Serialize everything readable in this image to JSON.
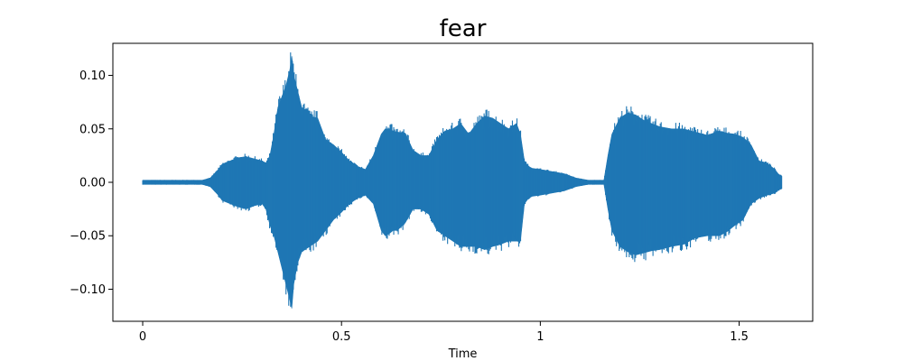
{
  "chart_data": {
    "type": "area",
    "title": "fear",
    "xlabel": "Time",
    "ylabel": "",
    "xlim": [
      -0.075,
      1.685
    ],
    "ylim": [
      -0.13,
      0.13
    ],
    "xticks": [
      0,
      0.5,
      1,
      1.5
    ],
    "xtick_labels": [
      "0",
      "0.5",
      "1",
      "1.5"
    ],
    "yticks": [
      -0.1,
      -0.05,
      0.0,
      0.05,
      0.1
    ],
    "ytick_labels": [
      "−0.10",
      "−0.05",
      "0.00",
      "0.05",
      "0.10"
    ],
    "grid": false,
    "legend": "none",
    "series": [
      {
        "color": "#1f77b4",
        "envelope": {
          "x": [
            0.0,
            0.04,
            0.08,
            0.12,
            0.15,
            0.17,
            0.19,
            0.2,
            0.22,
            0.24,
            0.26,
            0.28,
            0.3,
            0.31,
            0.32,
            0.33,
            0.34,
            0.35,
            0.36,
            0.37,
            0.375,
            0.38,
            0.39,
            0.4,
            0.42,
            0.44,
            0.46,
            0.48,
            0.5,
            0.52,
            0.54,
            0.56,
            0.58,
            0.6,
            0.61,
            0.62,
            0.63,
            0.64,
            0.66,
            0.68,
            0.7,
            0.72,
            0.74,
            0.76,
            0.78,
            0.8,
            0.82,
            0.84,
            0.86,
            0.88,
            0.9,
            0.92,
            0.94,
            0.95,
            0.96,
            0.97,
            0.98,
            1.0,
            1.03,
            1.06,
            1.09,
            1.12,
            1.14,
            1.16,
            1.17,
            1.18,
            1.2,
            1.22,
            1.24,
            1.26,
            1.28,
            1.3,
            1.33,
            1.36,
            1.39,
            1.42,
            1.45,
            1.47,
            1.49,
            1.51,
            1.53,
            1.55,
            1.57,
            1.59,
            1.6,
            1.607
          ],
          "upper": [
            0.002,
            0.002,
            0.002,
            0.002,
            0.002,
            0.004,
            0.012,
            0.017,
            0.02,
            0.023,
            0.024,
            0.022,
            0.02,
            0.018,
            0.025,
            0.045,
            0.07,
            0.08,
            0.09,
            0.105,
            0.118,
            0.1,
            0.085,
            0.07,
            0.062,
            0.06,
            0.04,
            0.035,
            0.028,
            0.02,
            0.015,
            0.012,
            0.025,
            0.045,
            0.05,
            0.05,
            0.048,
            0.047,
            0.046,
            0.03,
            0.025,
            0.025,
            0.04,
            0.048,
            0.05,
            0.055,
            0.045,
            0.055,
            0.062,
            0.06,
            0.055,
            0.05,
            0.055,
            0.045,
            0.02,
            0.015,
            0.013,
            0.012,
            0.01,
            0.008,
            0.004,
            0.002,
            0.002,
            0.002,
            0.025,
            0.045,
            0.06,
            0.065,
            0.063,
            0.058,
            0.055,
            0.052,
            0.05,
            0.05,
            0.047,
            0.044,
            0.048,
            0.046,
            0.045,
            0.042,
            0.035,
            0.02,
            0.018,
            0.012,
            0.007,
            0.006
          ],
          "lower": [
            -0.002,
            -0.002,
            -0.002,
            -0.002,
            -0.002,
            -0.004,
            -0.012,
            -0.017,
            -0.02,
            -0.023,
            -0.025,
            -0.022,
            -0.02,
            -0.025,
            -0.04,
            -0.05,
            -0.065,
            -0.08,
            -0.095,
            -0.11,
            -0.118,
            -0.095,
            -0.075,
            -0.065,
            -0.06,
            -0.055,
            -0.045,
            -0.035,
            -0.028,
            -0.02,
            -0.015,
            -0.012,
            -0.02,
            -0.045,
            -0.05,
            -0.048,
            -0.045,
            -0.045,
            -0.038,
            -0.025,
            -0.025,
            -0.03,
            -0.045,
            -0.05,
            -0.055,
            -0.06,
            -0.06,
            -0.06,
            -0.063,
            -0.06,
            -0.058,
            -0.055,
            -0.055,
            -0.055,
            -0.02,
            -0.015,
            -0.013,
            -0.012,
            -0.01,
            -0.008,
            -0.004,
            -0.002,
            -0.002,
            -0.002,
            -0.025,
            -0.045,
            -0.06,
            -0.065,
            -0.068,
            -0.066,
            -0.064,
            -0.063,
            -0.06,
            -0.058,
            -0.052,
            -0.05,
            -0.05,
            -0.046,
            -0.04,
            -0.035,
            -0.02,
            -0.015,
            -0.012,
            -0.01,
            -0.007,
            -0.006
          ]
        }
      }
    ]
  }
}
